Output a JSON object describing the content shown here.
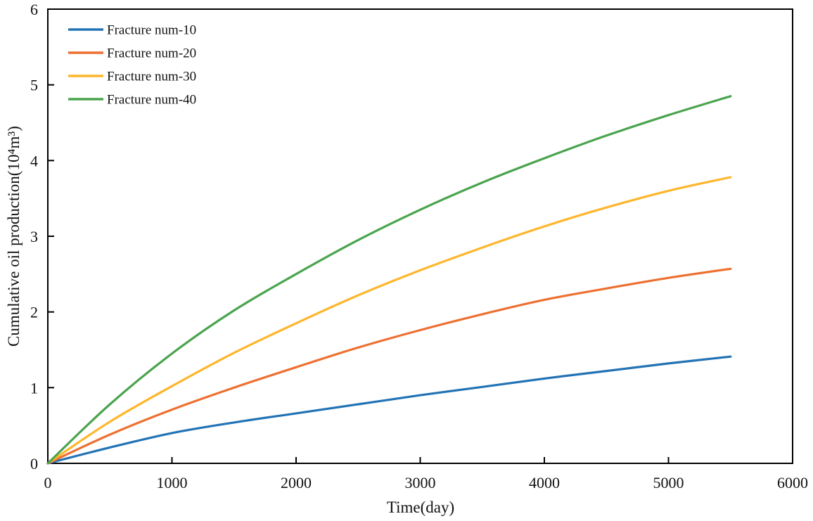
{
  "chart_data": {
    "type": "line",
    "title": "",
    "xlabel": "Time(day)",
    "ylabel": "Cumulative oil production(10⁴m³)",
    "xlim": [
      0,
      6000
    ],
    "ylim": [
      0,
      6
    ],
    "x_ticks": [
      0,
      1000,
      2000,
      3000,
      4000,
      5000,
      6000
    ],
    "y_ticks": [
      0,
      1,
      2,
      3,
      4,
      5,
      6
    ],
    "grid": false,
    "plot_border": "full-box",
    "tick_direction": "in",
    "legend_position": "top-left-inside",
    "x": [
      0,
      500,
      1000,
      1500,
      2000,
      2500,
      3000,
      3500,
      4000,
      4500,
      5000,
      5500
    ],
    "series": [
      {
        "name": "Fracture num-10",
        "color": "#2273B5",
        "values": [
          0,
          0.21,
          0.4,
          0.54,
          0.66,
          0.78,
          0.9,
          1.01,
          1.12,
          1.22,
          1.32,
          1.41
        ]
      },
      {
        "name": "Fracture num-20",
        "color": "#ED7031",
        "values": [
          0,
          0.38,
          0.71,
          1.0,
          1.27,
          1.53,
          1.76,
          1.97,
          2.16,
          2.31,
          2.45,
          2.57
        ]
      },
      {
        "name": "Fracture num-30",
        "color": "#FEB62C",
        "values": [
          0,
          0.55,
          1.02,
          1.46,
          1.85,
          2.22,
          2.55,
          2.85,
          3.13,
          3.38,
          3.6,
          3.78
        ]
      },
      {
        "name": "Fracture num-40",
        "color": "#4AA44E",
        "values": [
          0,
          0.78,
          1.45,
          2.02,
          2.5,
          2.95,
          3.35,
          3.71,
          4.03,
          4.33,
          4.6,
          4.85
        ]
      }
    ]
  },
  "style": {
    "axis_color": "#000000",
    "text_color": "#111111",
    "background": "#ffffff",
    "line_width": 3.2,
    "legend_swatch_width": 50
  }
}
